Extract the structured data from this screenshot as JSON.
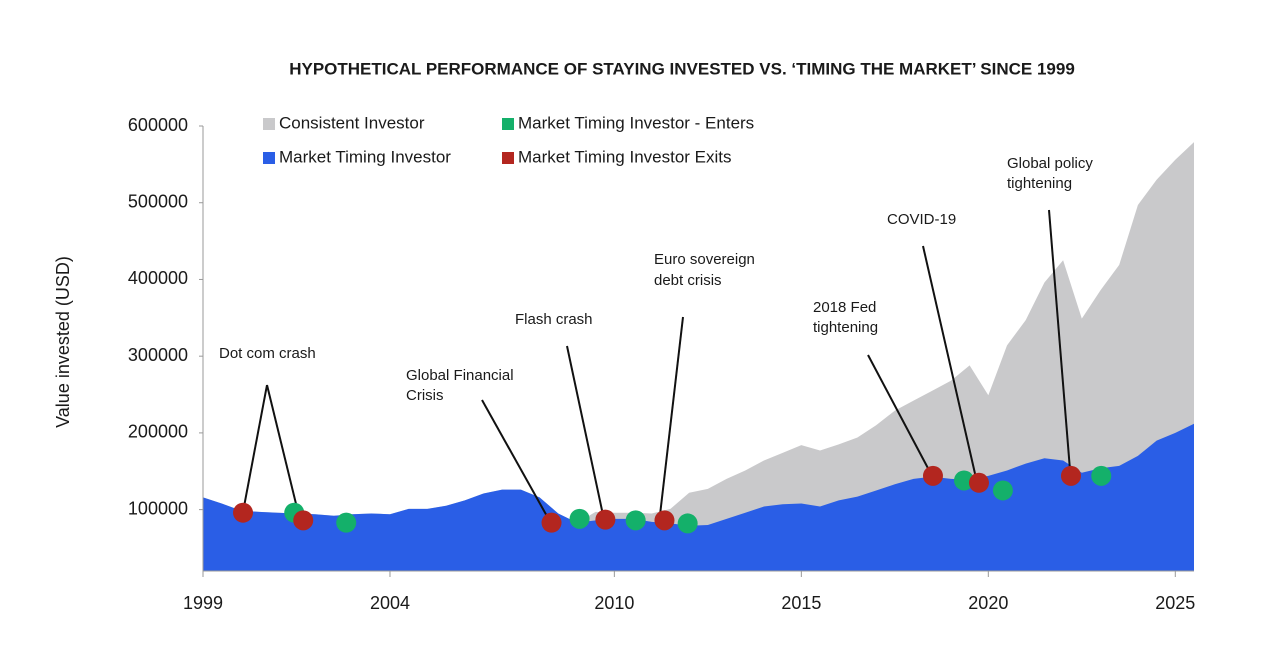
{
  "chart_data": {
    "type": "area",
    "title": "HYPOTHETICAL  PERFORMANCE OF STAYING INVESTED VS. ‘TIMING THE MARKET’ SINCE 1999",
    "y_label": "Value invested (USD)",
    "x": [
      1999,
      1999.5,
      2000,
      2000.5,
      2001,
      2001.5,
      2002,
      2002.5,
      2003,
      2003.5,
      2004,
      2004.5,
      2005,
      2005.5,
      2006,
      2006.5,
      2007,
      2007.5,
      2008,
      2008.5,
      2009,
      2009.5,
      2010,
      2010.5,
      2011,
      2011.5,
      2012,
      2012.5,
      2013,
      2013.5,
      2014,
      2014.5,
      2015,
      2015.5,
      2016,
      2016.5,
      2017,
      2017.5,
      2018,
      2018.5,
      2019,
      2019.5,
      2020,
      2020.5,
      2021,
      2021.5,
      2022,
      2022.5,
      2023,
      2023.5,
      2024,
      2024.5,
      2025,
      2025.5
    ],
    "xlim": [
      1999,
      2025.5
    ],
    "xticks": [
      1999,
      2004,
      2010,
      2015,
      2020,
      2025
    ],
    "ylim": [
      20000,
      600000
    ],
    "yticks": [
      100000,
      200000,
      300000,
      400000,
      500000,
      600000
    ],
    "series": [
      {
        "name": "Consistent Investor",
        "color": "#c9c9cb",
        "values": [
          116000,
          108000,
          99000,
          97000,
          96000,
          95000,
          94000,
          92000,
          94000,
          95000,
          94000,
          101000,
          101000,
          105000,
          112000,
          121000,
          126000,
          126000,
          116000,
          95000,
          83000,
          97000,
          96000,
          96000,
          95000,
          101000,
          122000,
          127000,
          140000,
          151000,
          164000,
          174000,
          184000,
          177000,
          185000,
          194000,
          210000,
          229000,
          242000,
          255000,
          268000,
          288000,
          249000,
          314000,
          347000,
          396000,
          425000,
          349000,
          386000,
          419000,
          497000,
          530000,
          556000,
          579000
        ]
      },
      {
        "name": "Market Timing Investor",
        "color": "#2a5ee6",
        "values": [
          116000,
          108000,
          99000,
          97000,
          96000,
          95000,
          94000,
          92000,
          94000,
          95000,
          94000,
          101000,
          101000,
          105000,
          112000,
          121000,
          126000,
          126000,
          116000,
          95000,
          83000,
          86000,
          88000,
          88000,
          84000,
          82000,
          79000,
          80000,
          88000,
          96000,
          104000,
          107000,
          108000,
          104000,
          112000,
          117000,
          125000,
          133000,
          140000,
          143000,
          140000,
          139000,
          144000,
          151000,
          160000,
          167000,
          164000,
          148000,
          154000,
          157000,
          170000,
          190000,
          200000,
          212000
        ]
      }
    ],
    "markers": [
      {
        "name": "Market Timing Investor - Enters",
        "color": "#14b06a",
        "x": [
          2001.44,
          2002.83,
          2009.07,
          2010.57,
          2011.96,
          2019.35,
          2020.39,
          2023.02
        ],
        "values": [
          96000,
          83000,
          88000,
          86000,
          82000,
          138000,
          125000,
          144000
        ]
      },
      {
        "name": "Market Timing Investor Exits",
        "color": "#b3261f",
        "x": [
          2000.07,
          2001.68,
          2008.32,
          2009.76,
          2011.34,
          2018.52,
          2019.75,
          2022.21
        ],
        "values": [
          96000,
          86000,
          83000,
          87000,
          86000,
          144000,
          135000,
          144000
        ]
      }
    ],
    "annotations": [
      [
        "Dot com crash"
      ],
      [
        "Global Financial",
        "Crisis"
      ],
      [
        "Flash crash"
      ],
      [
        "Euro sovereign",
        "debt crisis"
      ],
      [
        "2018 Fed",
        "tightening"
      ],
      [
        "COVID-19"
      ],
      [
        "Global policy",
        "tightening"
      ]
    ]
  }
}
